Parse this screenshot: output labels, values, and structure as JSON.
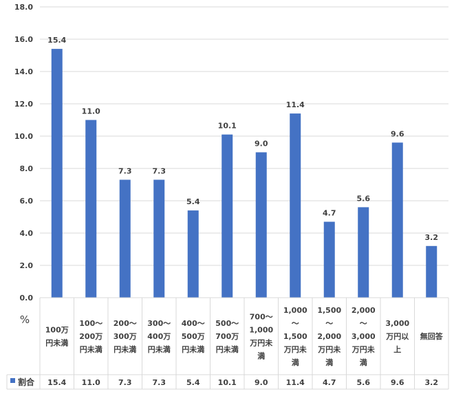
{
  "chart_data": {
    "type": "bar",
    "title": "",
    "xlabel": "",
    "ylabel": "%",
    "ylim": [
      0,
      18
    ],
    "yticks": [
      "0.0",
      "2.0",
      "4.0",
      "6.0",
      "8.0",
      "10.0",
      "12.0",
      "14.0",
      "16.0",
      "18.0"
    ],
    "grid": true,
    "bar_color": "#4472C4",
    "categories": [
      [
        "100万",
        "円未満"
      ],
      [
        "100〜",
        "200万",
        "円未満"
      ],
      [
        "200〜",
        "300万",
        "円未満"
      ],
      [
        "300〜",
        "400万",
        "円未満"
      ],
      [
        "400〜",
        "500万",
        "円未満"
      ],
      [
        "500〜",
        "700万",
        "円未満"
      ],
      [
        "700〜",
        "1,000",
        "万円未",
        "満"
      ],
      [
        "1,000",
        "〜",
        "1,500",
        "万円未",
        "満"
      ],
      [
        "1,500",
        "〜",
        "2,000",
        "万円未",
        "満"
      ],
      [
        "2,000",
        "〜",
        "3,000",
        "万円未",
        "満"
      ],
      [
        "3,000",
        "万円以",
        "上"
      ],
      [
        "無回答"
      ]
    ],
    "series": [
      {
        "name": "割合",
        "values": [
          15.4,
          11.0,
          7.3,
          7.3,
          5.4,
          10.1,
          9.0,
          11.4,
          4.7,
          5.6,
          9.6,
          3.2
        ],
        "labels": [
          "15.4",
          "11.0",
          "7.3",
          "7.3",
          "5.4",
          "10.1",
          "9.0",
          "11.4",
          "4.7",
          "5.6",
          "9.6",
          "3.2"
        ]
      }
    ]
  }
}
